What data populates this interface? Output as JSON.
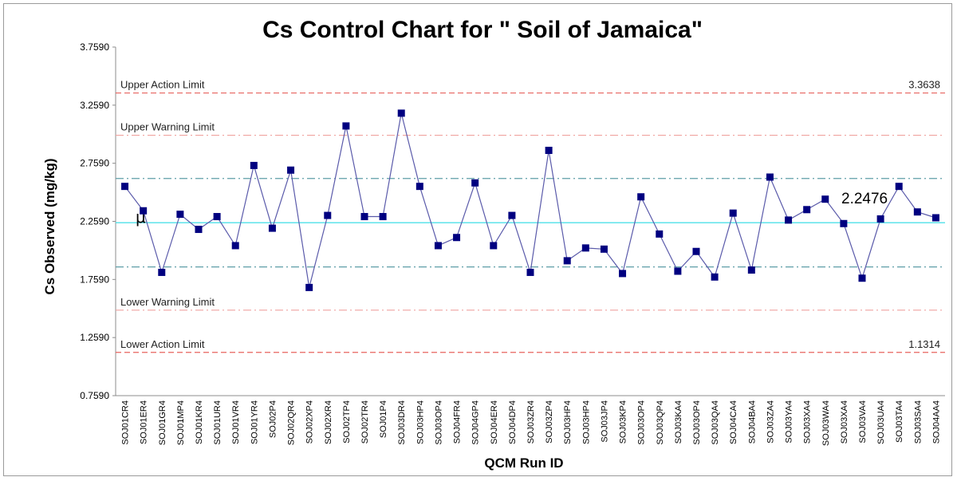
{
  "chart_data": {
    "type": "line",
    "title": "Cs Control Chart for \" Soil of Jamaica\"",
    "xlabel": "QCM Run ID",
    "ylabel": "Cs Observed (mg/kg)",
    "ylim": [
      0.759,
      3.759
    ],
    "yticks": [
      "0.7590",
      "1.2590",
      "1.7590",
      "2.2590",
      "2.7590",
      "3.2590",
      "3.7590"
    ],
    "grid": false,
    "categories": [
      "SOJ01CR4",
      "SOJ01ER4",
      "SOJ01GR4",
      "SOJ01MP4",
      "SOJ01KR4",
      "SOJ01UR4",
      "SOJ01VR4",
      "SOJ01YR4",
      "SOJ02P4",
      "SOJ02QR4",
      "SOJ02XP4",
      "SOJ02XR4",
      "SOJ02TP4",
      "SOJ02TR4",
      "SOJ01P4",
      "SOJ03DR4",
      "SOJ03HP4",
      "SOJ03OP4",
      "SOJ04FR4",
      "SOJ04GP4",
      "SOJ04ER4",
      "SOJ04DP4",
      "SOJ03ZR4",
      "SOJ03ZP4",
      "SOJ03HP4",
      "SOJ03HP4",
      "SOJ03JP4",
      "SOJ03KP4",
      "SOJ03OP4",
      "SOJ03QP4",
      "SOJ03KA4",
      "SOJ03OP4",
      "SOJ03QA4",
      "SOJ04CA4",
      "SOJ04BA4",
      "SOJ03ZA4",
      "SOJ03YA4",
      "SOJ03XA4",
      "SOJ03WA4",
      "SOJ03XA4",
      "SOJ03VA4",
      "SOJ03UA4",
      "SOJ03TA4",
      "SOJ03SA4",
      "SOJ04AA4"
    ],
    "series": [
      {
        "color": "#000080",
        "values": [
          2.56,
          2.35,
          1.82,
          2.32,
          2.19,
          2.3,
          2.05,
          2.74,
          2.2,
          2.7,
          1.69,
          2.31,
          3.08,
          2.3,
          2.3,
          3.19,
          2.56,
          2.05,
          2.12,
          2.59,
          2.05,
          2.31,
          1.82,
          2.87,
          1.92,
          2.03,
          2.02,
          1.81,
          2.47,
          2.15,
          1.83,
          2.0,
          1.78,
          2.33,
          1.84,
          2.64,
          2.27,
          2.36,
          2.45,
          2.24,
          1.77,
          2.28,
          2.56,
          2.34,
          2.29
        ]
      }
    ],
    "reference_lines": [
      {
        "label": "Upper Action Limit",
        "value": 3.3638,
        "value_label": "3.3638",
        "color": "#e8635f",
        "style": "dashed"
      },
      {
        "label": "Upper Warning Limit",
        "value": 3.0,
        "value_label": "",
        "color": "#f0a3a0",
        "style": "dash-dot"
      },
      {
        "label": "",
        "value": 2.628,
        "value_label": "",
        "color": "#5f9ea8",
        "style": "dash-dot"
      },
      {
        "label": "μ",
        "value": 2.2476,
        "value_label": "2.2476",
        "color": "#4ee0e8",
        "style": "solid"
      },
      {
        "label": "",
        "value": 1.867,
        "value_label": "",
        "color": "#5f9ea8",
        "style": "dash-dot"
      },
      {
        "label": "Lower Warning Limit",
        "value": 1.495,
        "value_label": "",
        "color": "#f0a3a0",
        "style": "dash-dot"
      },
      {
        "label": "Lower Action Limit",
        "value": 1.1314,
        "value_label": "1.1314",
        "color": "#e8635f",
        "style": "dashed"
      }
    ],
    "marker": "square",
    "line_color": "#5a5aaa"
  }
}
